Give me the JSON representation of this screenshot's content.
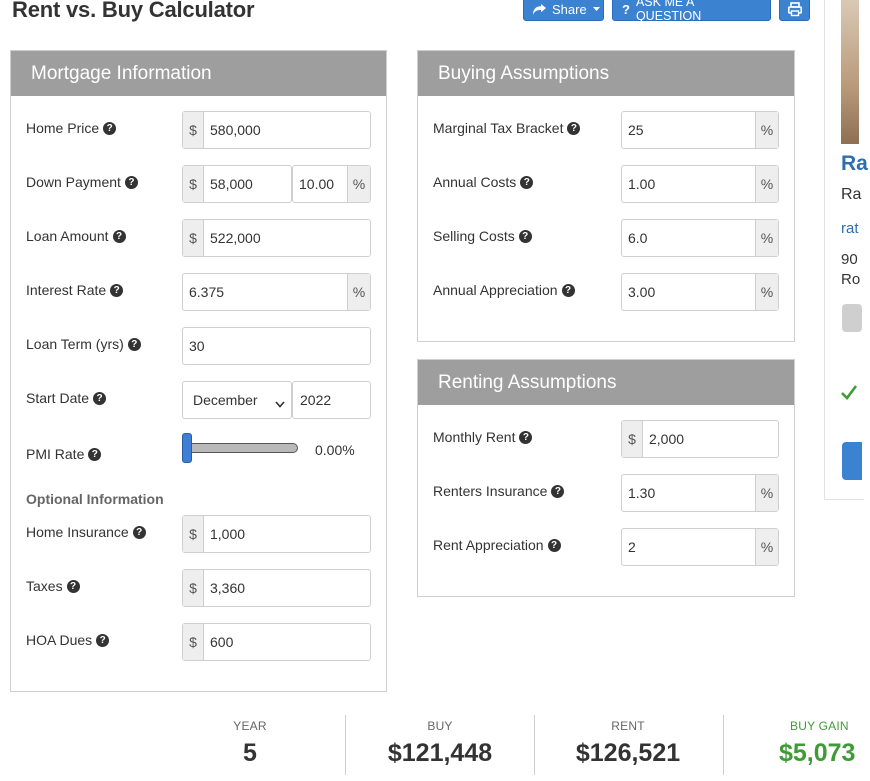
{
  "page": {
    "title": "Rent vs. Buy Calculator"
  },
  "toolbar": {
    "share_label": "Share",
    "ask_label": "ASK ME A QUESTION",
    "share_icon": "share-arrow-icon",
    "ask_icon": "question-icon",
    "print_icon": "printer-icon",
    "button_color": "#3b82d1"
  },
  "mortgage": {
    "header": "Mortgage Information",
    "home_price": {
      "label": "Home Price",
      "prefix": "$",
      "value": "580,000"
    },
    "down_payment": {
      "label": "Down Payment",
      "prefix": "$",
      "value": "58,000",
      "percent": "10.00",
      "suffix": "%"
    },
    "loan_amount": {
      "label": "Loan Amount",
      "prefix": "$",
      "value": "522,000"
    },
    "interest_rate": {
      "label": "Interest Rate",
      "value": "6.375",
      "suffix": "%"
    },
    "loan_term": {
      "label": "Loan Term (yrs)",
      "value": "30"
    },
    "start_date": {
      "label": "Start Date",
      "month": "December",
      "year": "2022"
    },
    "pmi_rate": {
      "label": "PMI Rate",
      "value_text": "0.00%",
      "slider_fraction": 0.0
    },
    "optional_header": "Optional Information",
    "home_insurance": {
      "label": "Home Insurance",
      "prefix": "$",
      "value": "1,000"
    },
    "taxes": {
      "label": "Taxes",
      "prefix": "$",
      "value": "3,360"
    },
    "hoa_dues": {
      "label": "HOA Dues",
      "prefix": "$",
      "value": "600"
    }
  },
  "buying": {
    "header": "Buying Assumptions",
    "marginal_tax": {
      "label": "Marginal Tax Bracket",
      "value": "25",
      "suffix": "%"
    },
    "annual_costs": {
      "label": "Annual Costs",
      "value": "1.00",
      "suffix": "%"
    },
    "selling_costs": {
      "label": "Selling Costs",
      "value": "6.0",
      "suffix": "%"
    },
    "annual_appreciation": {
      "label": "Annual Appreciation",
      "value": "3.00",
      "suffix": "%"
    }
  },
  "renting": {
    "header": "Renting Assumptions",
    "monthly_rent": {
      "label": "Monthly Rent",
      "prefix": "$",
      "value": "2,000"
    },
    "renters_insurance": {
      "label": "Renters Insurance",
      "value": "1.30",
      "suffix": "%"
    },
    "rent_appreciation": {
      "label": "Rent Appreciation",
      "value": "2",
      "suffix": "%"
    }
  },
  "results": {
    "year": {
      "label": "YEAR",
      "value": "5"
    },
    "buy": {
      "label": "BUY",
      "value": "$121,448"
    },
    "rent": {
      "label": "RENT",
      "value": "$126,521"
    },
    "buy_gain": {
      "label": "BUY GAIN",
      "value": "$5,073",
      "color": "#3e9c35"
    }
  },
  "side_card": {
    "title_fragment": "Ra",
    "line1": "Ra",
    "link_fragment": "rat",
    "line3": "90",
    "line4": "Ro",
    "title_color": "#2f6db3",
    "check_color": "#3e9c35"
  }
}
